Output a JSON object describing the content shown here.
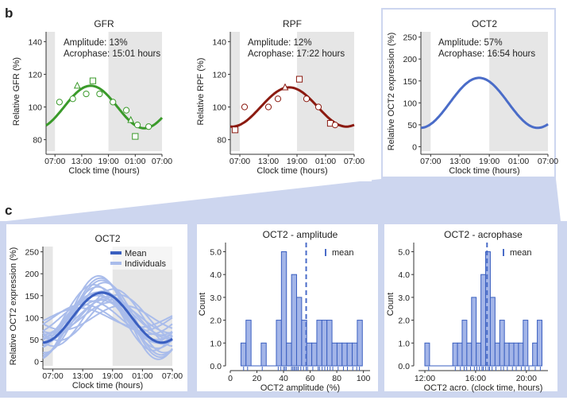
{
  "panel_b_label": "b",
  "panel_c_label": "c",
  "chart_data": [
    {
      "type": "line",
      "title": "GFR",
      "xlabel": "Clock time (hours)",
      "ylabel": "Relative GFR (%)",
      "xticks": [
        "07:00",
        "13:00",
        "19:00",
        "01:00",
        "07:00"
      ],
      "yticks": [
        80,
        100,
        120,
        140
      ],
      "ylim": [
        73,
        146
      ],
      "shading": "grey before 07:00 and from 19:00 to 07:00",
      "annotation": [
        "Amplitude: 13%",
        "Acrophase: 15:01 hours"
      ],
      "mean": 100,
      "amplitude_pct": 13,
      "acrophase_hour": 15.02,
      "color": "#3a9a2a",
      "points": [
        {
          "x": "08:00",
          "y": 103,
          "marker": "circle"
        },
        {
          "x": "11:00",
          "y": 105,
          "marker": "circle"
        },
        {
          "x": "12:00",
          "y": 113,
          "marker": "triangle"
        },
        {
          "x": "14:00",
          "y": 108,
          "marker": "circle"
        },
        {
          "x": "15:30",
          "y": 116,
          "marker": "square"
        },
        {
          "x": "17:00",
          "y": 108,
          "marker": "circle"
        },
        {
          "x": "20:00",
          "y": 103,
          "marker": "circle"
        },
        {
          "x": "23:00",
          "y": 98,
          "marker": "circle"
        },
        {
          "x": "00:00",
          "y": 92,
          "marker": "triangle"
        },
        {
          "x": "01:30",
          "y": 89,
          "marker": "circle"
        },
        {
          "x": "01:00",
          "y": 82,
          "marker": "square"
        },
        {
          "x": "04:00",
          "y": 88,
          "marker": "circle"
        }
      ]
    },
    {
      "type": "line",
      "title": "RPF",
      "xlabel": "Clock time (hours)",
      "ylabel": "Relative RPF (%)",
      "xticks": [
        "07:00",
        "13:00",
        "19:00",
        "01:00",
        "07:00"
      ],
      "yticks": [
        80,
        100,
        120,
        140
      ],
      "ylim": [
        73,
        146
      ],
      "shading": "grey before 07:00 and from 19:00 to 07:00",
      "annotation": [
        "Amplitude: 12%",
        "Acrophase: 17:22 hours"
      ],
      "mean": 100,
      "amplitude_pct": 12,
      "acrophase_hour": 17.37,
      "color": "#8b1a10",
      "points": [
        {
          "x": "08:00",
          "y": 100,
          "marker": "circle"
        },
        {
          "x": "13:00",
          "y": 100,
          "marker": "circle"
        },
        {
          "x": "15:00",
          "y": 105,
          "marker": "circle"
        },
        {
          "x": "16:30",
          "y": 112,
          "marker": "triangle"
        },
        {
          "x": "19:30",
          "y": 117,
          "marker": "square"
        },
        {
          "x": "21:00",
          "y": 105,
          "marker": "circle"
        },
        {
          "x": "23:30",
          "y": 100,
          "marker": "circle"
        },
        {
          "x": "02:00",
          "y": 90,
          "marker": "square"
        },
        {
          "x": "03:00",
          "y": 89,
          "marker": "circle"
        },
        {
          "x": "06:00",
          "y": 86,
          "marker": "square"
        }
      ]
    },
    {
      "type": "line",
      "title": "OCT2",
      "xlabel": "Clock time (hours)",
      "ylabel": "Relative OCT2 expression (%)",
      "xticks": [
        "07:00",
        "13:00",
        "19:00",
        "01:00",
        "07:00"
      ],
      "yticks": [
        0,
        50,
        100,
        150,
        200,
        250
      ],
      "ylim": [
        -10,
        262
      ],
      "shading": "grey before 07:00 and from 19:00 to 07:00",
      "annotation": [
        "Amplitude: 57%",
        "Acrophase: 16:54 hours"
      ],
      "mean": 100,
      "amplitude_pct": 57,
      "acrophase_hour": 16.9,
      "color": "#4a6cc8"
    },
    {
      "type": "line",
      "title": "OCT2",
      "xlabel": "Clock time (hours)",
      "ylabel": "Relative OCT2 expression (%)",
      "xticks": [
        "07:00",
        "13:00",
        "19:00",
        "01:00",
        "07:00"
      ],
      "yticks": [
        0,
        50,
        100,
        150,
        200,
        250
      ],
      "ylim": [
        -10,
        262
      ],
      "legend": {
        "position": "top-right",
        "entries": [
          "Mean",
          "Individuals"
        ]
      },
      "series": [
        {
          "name": "Mean",
          "amplitude_pct": 57,
          "acrophase_hour": 16.9,
          "color": "#3a5fc0"
        },
        {
          "name": "Individuals",
          "color": "#a9bceb",
          "curves": [
            {
              "amplitude_pct": 40,
              "acrophase_hour": 16.5
            },
            {
              "amplitude_pct": 55,
              "acrophase_hour": 15.5
            },
            {
              "amplitude_pct": 60,
              "acrophase_hour": 17.0
            },
            {
              "amplitude_pct": 70,
              "acrophase_hour": 16.0
            },
            {
              "amplitude_pct": 85,
              "acrophase_hour": 16.8
            },
            {
              "amplitude_pct": 95,
              "acrophase_hour": 16.2
            },
            {
              "amplitude_pct": 48,
              "acrophase_hour": 18.3
            },
            {
              "amplitude_pct": 38,
              "acrophase_hour": 14.5
            },
            {
              "amplitude_pct": 65,
              "acrophase_hour": 19.2
            },
            {
              "amplitude_pct": 30,
              "acrophase_hour": 13.0
            },
            {
              "amplitude_pct": 52,
              "acrophase_hour": 20.2
            },
            {
              "amplitude_pct": 75,
              "acrophase_hour": 15.2
            },
            {
              "amplitude_pct": 42,
              "acrophase_hour": 17.8
            },
            {
              "amplitude_pct": 58,
              "acrophase_hour": 16.1
            },
            {
              "amplitude_pct": 22,
              "acrophase_hour": 12.3
            },
            {
              "amplitude_pct": 80,
              "acrophase_hour": 17.4
            },
            {
              "amplitude_pct": 35,
              "acrophase_hour": 18.8
            },
            {
              "amplitude_pct": 50,
              "acrophase_hour": 15.8
            },
            {
              "amplitude_pct": 90,
              "acrophase_hour": 16.6
            },
            {
              "amplitude_pct": 28,
              "acrophase_hour": 21.0
            }
          ]
        }
      ]
    },
    {
      "type": "bar",
      "title": "OCT2 - amplitude",
      "xlabel": "OCT2 amplitude (%)",
      "ylabel": "Count",
      "xticks": [
        0,
        20,
        40,
        60,
        80,
        100
      ],
      "yticks": [
        "0.0",
        "1.0",
        "2.0",
        "3.0",
        "4.0",
        "5.0"
      ],
      "xlim": [
        0,
        105
      ],
      "ylim": [
        0,
        5.4
      ],
      "bin_width": 3.8,
      "bins": [
        {
          "x0": 8.0,
          "count": 1
        },
        {
          "x0": 11.8,
          "count": 2
        },
        {
          "x0": 23.2,
          "count": 1
        },
        {
          "x0": 34.6,
          "count": 2
        },
        {
          "x0": 38.4,
          "count": 5
        },
        {
          "x0": 42.2,
          "count": 1
        },
        {
          "x0": 46.0,
          "count": 4
        },
        {
          "x0": 49.8,
          "count": 3
        },
        {
          "x0": 53.6,
          "count": 2
        },
        {
          "x0": 57.4,
          "count": 1
        },
        {
          "x0": 61.2,
          "count": 1
        },
        {
          "x0": 65.0,
          "count": 2
        },
        {
          "x0": 68.8,
          "count": 2
        },
        {
          "x0": 72.6,
          "count": 2
        },
        {
          "x0": 76.4,
          "count": 1
        },
        {
          "x0": 80.2,
          "count": 1
        },
        {
          "x0": 84.0,
          "count": 1
        },
        {
          "x0": 87.8,
          "count": 1
        },
        {
          "x0": 91.6,
          "count": 1
        },
        {
          "x0": 95.4,
          "count": 2
        }
      ],
      "mean": 57,
      "legend": {
        "position": "top-right",
        "entries": [
          "mean"
        ]
      },
      "rug": [
        10,
        13,
        24,
        36,
        38,
        40,
        41,
        42,
        46,
        47,
        48,
        49,
        50,
        51,
        53,
        55,
        57,
        58,
        62,
        66,
        67,
        69,
        71,
        73,
        75,
        77,
        81,
        85,
        88,
        92,
        95,
        97
      ]
    },
    {
      "type": "bar",
      "title": "OCT2 - acrophase",
      "xlabel": "OCT2 acro. (clock time, hours)",
      "ylabel": "Count",
      "xticks": [
        "12:00",
        "16:00",
        "20:00"
      ],
      "yticks": [
        "0.0",
        "1.0",
        "2.0",
        "3.0",
        "4.0",
        "5.0"
      ],
      "xlim": [
        11.5,
        21.7
      ],
      "ylim": [
        0,
        5.4
      ],
      "bin_width": 0.37,
      "bins": [
        {
          "x0": 12.0,
          "count": 1
        },
        {
          "x0": 14.2,
          "count": 1
        },
        {
          "x0": 14.57,
          "count": 1
        },
        {
          "x0": 14.94,
          "count": 2
        },
        {
          "x0": 15.31,
          "count": 1
        },
        {
          "x0": 15.68,
          "count": 3
        },
        {
          "x0": 16.05,
          "count": 1
        },
        {
          "x0": 16.42,
          "count": 4
        },
        {
          "x0": 16.79,
          "count": 5
        },
        {
          "x0": 17.16,
          "count": 3
        },
        {
          "x0": 17.53,
          "count": 1
        },
        {
          "x0": 17.9,
          "count": 2
        },
        {
          "x0": 18.27,
          "count": 1
        },
        {
          "x0": 18.64,
          "count": 1
        },
        {
          "x0": 19.01,
          "count": 1
        },
        {
          "x0": 19.38,
          "count": 1
        },
        {
          "x0": 19.75,
          "count": 2
        },
        {
          "x0": 20.49,
          "count": 1
        },
        {
          "x0": 20.86,
          "count": 2
        }
      ],
      "mean": 16.9,
      "legend": {
        "position": "top-right",
        "entries": [
          "mean"
        ]
      },
      "rug": [
        12.3,
        14.4,
        14.8,
        15.1,
        15.3,
        15.6,
        15.9,
        16.1,
        16.3,
        16.5,
        16.6,
        16.8,
        17.0,
        17.1,
        17.3,
        17.6,
        18.0,
        18.2,
        18.5,
        18.9,
        19.2,
        19.6,
        19.9,
        20.2,
        20.7,
        21.1
      ]
    }
  ]
}
